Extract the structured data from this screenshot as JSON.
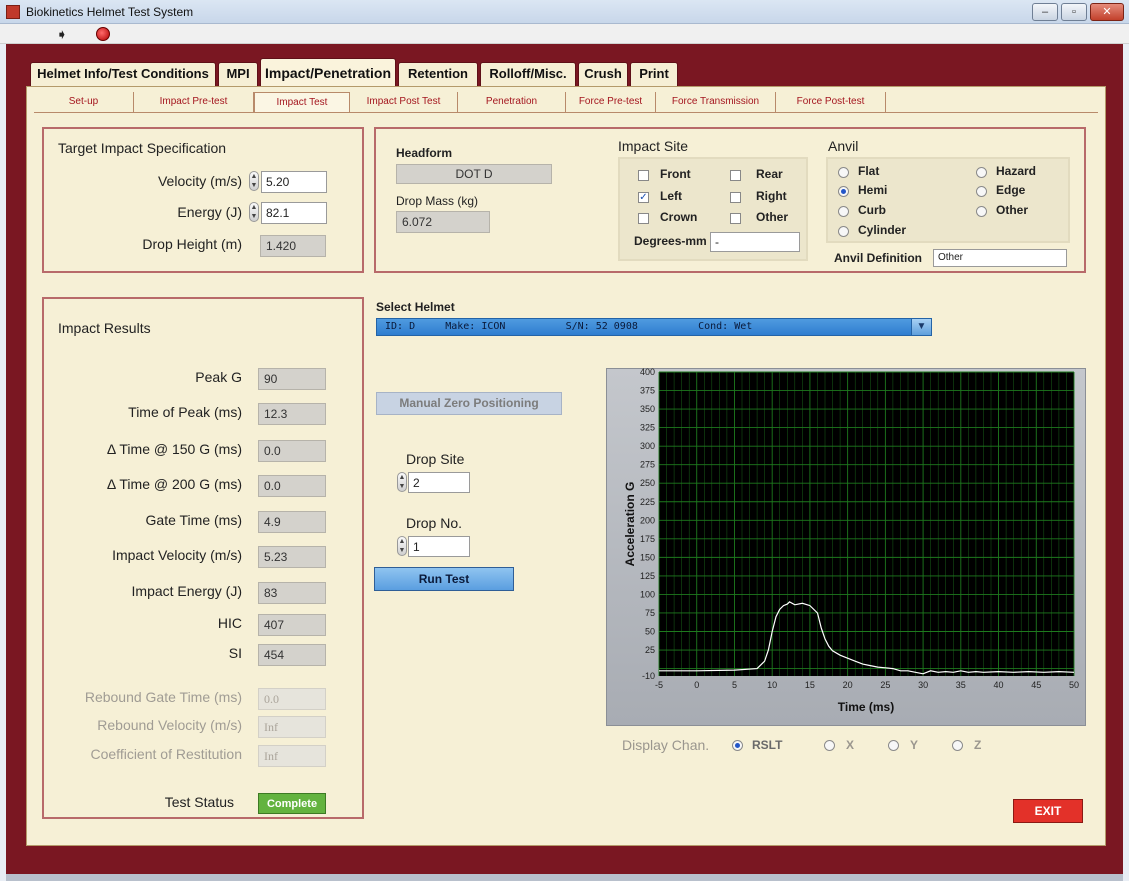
{
  "window": {
    "title": "Biokinetics Helmet Test System",
    "buttons": [
      "–",
      "▫",
      "✕"
    ]
  },
  "toolbar": {
    "run_glyph": "➧"
  },
  "main_tabs": [
    "Helmet Info/Test Conditions",
    "MPI",
    "Impact/Penetration",
    "Retention",
    "Rolloff/Misc.",
    "Crush",
    "Print"
  ],
  "sub_tabs": [
    "Set-up",
    "Impact Pre-test",
    "Impact Test",
    "Impact Post Test",
    "Penetration",
    "Force Pre-test",
    "Force Transmission",
    "Force Post-test"
  ],
  "target": {
    "title": "Target Impact Specification",
    "velocity_label": "Velocity (m/s)",
    "velocity": "5.20",
    "energy_label": "Energy (J)",
    "energy": "82.1",
    "drop_height_label": "Drop Height (m)",
    "drop_height": "1.420"
  },
  "headform": {
    "label": "Headform",
    "value": "DOT D",
    "drop_mass_label": "Drop Mass (kg)",
    "drop_mass": "6.072"
  },
  "impact_site": {
    "title": "Impact Site",
    "options": [
      {
        "label": "Front",
        "checked": false
      },
      {
        "label": "Rear",
        "checked": false
      },
      {
        "label": "Left",
        "checked": true
      },
      {
        "label": "Right",
        "checked": false
      },
      {
        "label": "Crown",
        "checked": false
      },
      {
        "label": "Other",
        "checked": false
      }
    ],
    "degrees_label": "Degrees-mm",
    "degrees_value": "-"
  },
  "anvil": {
    "title": "Anvil",
    "options": [
      {
        "label": "Flat",
        "selected": false
      },
      {
        "label": "Hazard",
        "selected": false
      },
      {
        "label": "Hemi",
        "selected": true
      },
      {
        "label": "Edge",
        "selected": false
      },
      {
        "label": "Curb",
        "selected": false
      },
      {
        "label": "Other",
        "selected": false
      },
      {
        "label": "Cylinder",
        "selected": false
      }
    ],
    "definition_label": "Anvil Definition",
    "definition_value": "Other"
  },
  "results": {
    "title": "Impact Results",
    "rows": [
      {
        "label": "Peak G",
        "value": "90"
      },
      {
        "label": "Time of Peak (ms)",
        "value": "12.3"
      },
      {
        "label": "Δ Time @ 150 G (ms)",
        "value": "0.0"
      },
      {
        "label": "Δ Time @ 200 G (ms)",
        "value": "0.0"
      },
      {
        "label": "Gate Time (ms)",
        "value": "4.9"
      },
      {
        "label": "Impact Velocity (m/s)",
        "value": "5.23"
      },
      {
        "label": "Impact Energy (J)",
        "value": "83"
      },
      {
        "label": "HIC",
        "value": "407"
      },
      {
        "label": "SI",
        "value": "454"
      }
    ],
    "disabled_rows": [
      {
        "label": "Rebound Gate Time (ms)",
        "value": "0.0"
      },
      {
        "label": "Rebound Velocity (m/s)",
        "value": "Inf"
      },
      {
        "label": "Coefficient of Restitution",
        "value": "Inf"
      }
    ],
    "status_label": "Test Status",
    "status_value": "Complete"
  },
  "select_helmet": {
    "label": "Select Helmet",
    "value": "ID: D     Make: ICON          S/N: 52 0908          Cond: Wet"
  },
  "controls": {
    "manual_zero_label": "Manual Zero Positioning",
    "drop_site_label": "Drop Site",
    "drop_site": "2",
    "drop_no_label": "Drop No.",
    "drop_no": "1",
    "run_test_label": "Run Test",
    "exit_label": "EXIT"
  },
  "display_chan": {
    "label": "Display Chan.",
    "options": [
      {
        "label": "RSLT",
        "selected": true
      },
      {
        "label": "X",
        "selected": false
      },
      {
        "label": "Y",
        "selected": false
      },
      {
        "label": "Z",
        "selected": false
      }
    ]
  },
  "colors": {
    "frame": "#7a1722",
    "panel": "#f6f0d6",
    "plot_bg": "#000000",
    "grid": "#1e7a1e",
    "trace": "#ffffff"
  },
  "chart_data": {
    "type": "line",
    "title": "",
    "xlabel": "Time (ms)",
    "ylabel": "Acceleration G",
    "xlim": [
      -5,
      50
    ],
    "ylim": [
      -10,
      400
    ],
    "x_ticks": [
      "-5",
      "0",
      "5",
      "10",
      "15",
      "20",
      "25",
      "30",
      "35",
      "40",
      "45",
      "50"
    ],
    "y_ticks": [
      "-10",
      "25",
      "50",
      "75",
      "100",
      "125",
      "150",
      "175",
      "200",
      "225",
      "250",
      "275",
      "300",
      "325",
      "350",
      "375",
      "400"
    ],
    "grid": true,
    "series": [
      {
        "x": [
          -5,
          0,
          5,
          8,
          9,
          9.5,
          10,
          10.5,
          11,
          11.5,
          12,
          12.3,
          13,
          14,
          15,
          16,
          16.5,
          17,
          17.5,
          18,
          19,
          20,
          21,
          22,
          23,
          24,
          25,
          26,
          27,
          28,
          29,
          30,
          31,
          32,
          33,
          34,
          35,
          36,
          37,
          38,
          40,
          42,
          44,
          46,
          48,
          50
        ],
        "y": [
          -3,
          -3,
          -2,
          0,
          10,
          25,
          50,
          70,
          80,
          85,
          87,
          90,
          86,
          88,
          85,
          75,
          55,
          40,
          30,
          24,
          18,
          14,
          10,
          6,
          4,
          2,
          1,
          0,
          -3,
          -3,
          -5,
          -7,
          -3,
          -5,
          -4,
          -5,
          -3,
          -5,
          -4,
          -5,
          -4,
          -5,
          -4,
          -5,
          -4,
          -5
        ]
      }
    ]
  }
}
